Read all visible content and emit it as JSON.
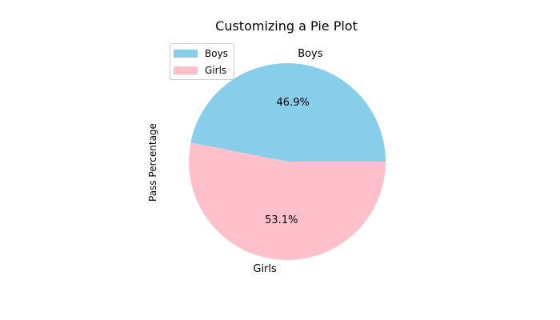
{
  "chart_data": {
    "type": "pie",
    "title": "Customizing a Pie Plot",
    "ylabel": "Pass Percentage",
    "categories": [
      "Boys",
      "Girls"
    ],
    "values": [
      46.9,
      53.1
    ],
    "percent_labels": [
      "46.9%",
      "53.1%"
    ],
    "colors": [
      "#87CEEB",
      "#FFC0CB"
    ],
    "start_angle_deg": 0,
    "direction": "counterclockwise",
    "legend": {
      "placement": "upper-left",
      "entries": [
        "Boys",
        "Girls"
      ]
    }
  }
}
